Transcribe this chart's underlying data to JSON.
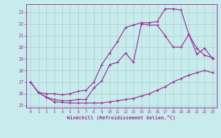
{
  "bg_color": "#c8ecec",
  "grid_color": "#aacccc",
  "line_color": "#993399",
  "xlabel": "Windchill (Refroidissement éolien,°C)",
  "xlim": [
    -0.5,
    23.5
  ],
  "ylim": [
    14.8,
    23.7
  ],
  "yticks": [
    15,
    16,
    17,
    18,
    19,
    20,
    21,
    22,
    23
  ],
  "xticks": [
    0,
    1,
    2,
    3,
    4,
    5,
    6,
    7,
    8,
    9,
    10,
    11,
    12,
    13,
    14,
    15,
    16,
    17,
    18,
    19,
    20,
    21,
    22,
    23
  ],
  "line1_x": [
    0,
    1,
    2,
    3,
    4,
    5,
    6,
    7,
    8,
    9,
    10,
    11,
    12,
    13,
    14,
    15,
    16,
    17,
    18,
    19,
    20,
    21,
    22,
    23
  ],
  "line1_y": [
    17.0,
    16.1,
    15.7,
    15.3,
    15.25,
    15.2,
    15.2,
    15.2,
    15.2,
    15.2,
    15.3,
    15.4,
    15.5,
    15.6,
    15.8,
    16.0,
    16.3,
    16.6,
    17.0,
    17.3,
    17.6,
    17.8,
    18.0,
    17.8
  ],
  "line2_x": [
    0,
    1,
    2,
    3,
    4,
    5,
    6,
    7,
    8,
    9,
    10,
    11,
    12,
    13,
    14,
    15,
    16,
    17,
    18,
    19,
    20,
    21,
    22,
    23
  ],
  "line2_y": [
    17.0,
    16.1,
    16.0,
    16.0,
    15.9,
    16.0,
    16.2,
    16.3,
    17.0,
    18.5,
    19.5,
    20.5,
    21.7,
    21.9,
    22.1,
    22.1,
    22.2,
    23.3,
    23.3,
    23.2,
    21.1,
    19.9,
    19.3,
    19.1
  ],
  "line3_x": [
    0,
    1,
    2,
    3,
    4,
    5,
    6,
    7,
    8,
    9,
    10,
    11,
    12,
    13,
    14,
    15,
    16,
    17,
    18,
    19,
    20,
    21,
    22,
    23
  ],
  "line3_y": [
    17.0,
    16.1,
    15.7,
    15.5,
    15.4,
    15.4,
    15.5,
    15.5,
    16.5,
    17.1,
    18.5,
    18.7,
    19.5,
    18.7,
    22.0,
    21.9,
    21.9,
    21.0,
    20.0,
    20.0,
    21.1,
    19.4,
    19.9,
    19.0
  ]
}
